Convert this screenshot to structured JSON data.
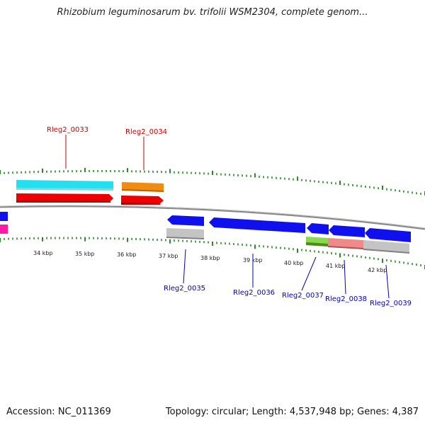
{
  "title": "Rhizobium leguminosarum bv. trifolii WSM2304, complete genom...",
  "accession_text": "Accession: NC_011369",
  "topology_text": "Topology: circular; Length: 4,537,948 bp; Genes: 4,387",
  "kbp_labels": [
    "34 kbp",
    "35 kbp",
    "36 kbp",
    "37 kbp",
    "38 kbp",
    "39 kbp",
    "40 kbp",
    "41 kbp",
    "42 kbp"
  ],
  "colors": {
    "forward_label": "#cc0000",
    "reverse_label": "#0000bb",
    "backbone": "#888888",
    "tick": "#2a8a2a",
    "cyan": "#22e0f0",
    "orange": "#f08c10",
    "red": "#ee0000",
    "blue": "#1010ee",
    "magenta": "#ff1aa8",
    "gray": "#c4c4c4",
    "lime": "#8ad850",
    "pink": "#f08a8a"
  },
  "forward_gene_labels": [
    "Rleg2_0033",
    "Rleg2_0034"
  ],
  "reverse_gene_labels": [
    "Rleg2_0035",
    "Rleg2_0036",
    "Rleg2_0037",
    "Rleg2_0038",
    "Rleg2_0039"
  ]
}
